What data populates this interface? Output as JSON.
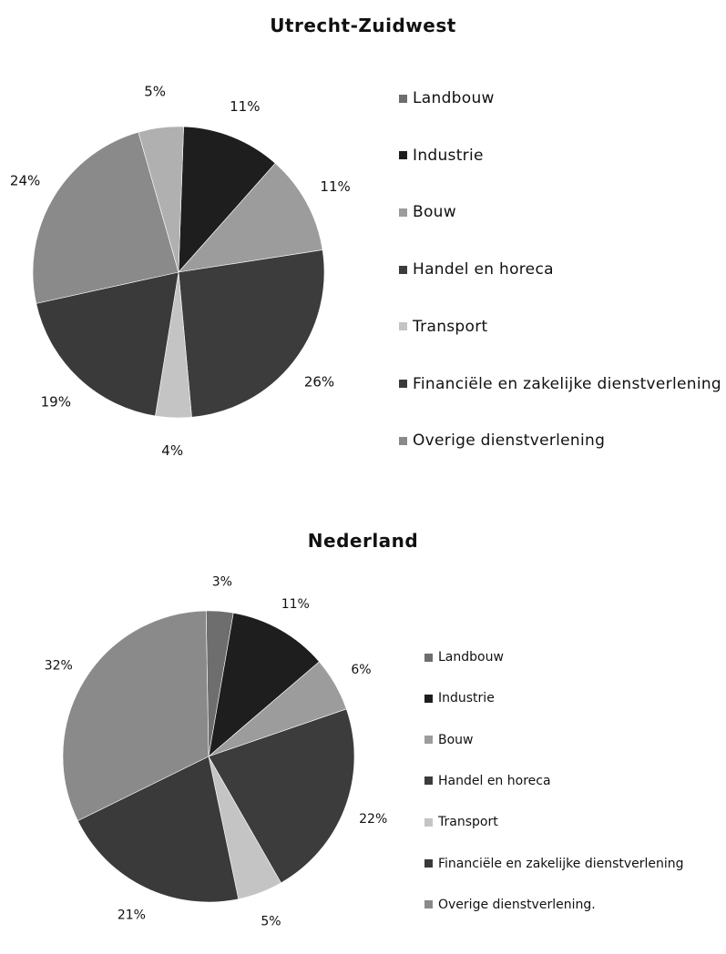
{
  "colors": {
    "Landbouw": "#6e6e6e",
    "Industrie": "#1e1e1e",
    "Bouw": "#9c9c9c",
    "Handel en horeca": "#3c3c3c",
    "Transport": "#c4c4c4",
    "Financiele en zakelijke dienstverlening": "#3a3a3a",
    "Overige dienstverlening": "#8a8a8a"
  },
  "chart_data": [
    {
      "type": "pie",
      "title": "Utrecht-Zuidwest",
      "slices": [
        {
          "label": "Landbouw",
          "value": 0,
          "display": ""
        },
        {
          "label": "Industrie",
          "value": 11,
          "display": "11%"
        },
        {
          "label": "Bouw",
          "value": 11,
          "display": "11%"
        },
        {
          "label": "Handel en horeca",
          "value": 26,
          "display": "26%"
        },
        {
          "label": "Transport",
          "value": 4,
          "display": "4%"
        },
        {
          "label": "Financiële en zakelijke dienstverlening",
          "value": 19,
          "display": "19%"
        },
        {
          "label": "Overige dienstverlening",
          "value": 24,
          "display": "24%"
        },
        {
          "label": "",
          "value": 5,
          "display": "5%"
        }
      ],
      "legend": [
        "Landbouw",
        "Industrie",
        "Bouw",
        "Handel en horeca",
        "Transport",
        "Financiële en zakelijke dienstverlening",
        "Overige dienstverlening"
      ],
      "legend_position": "right"
    },
    {
      "type": "pie",
      "title": "Nederland",
      "slices": [
        {
          "label": "Landbouw",
          "value": 3,
          "display": "3%"
        },
        {
          "label": "Industrie",
          "value": 11,
          "display": "11%"
        },
        {
          "label": "Bouw",
          "value": 6,
          "display": "6%"
        },
        {
          "label": "Handel en horeca",
          "value": 22,
          "display": "22%"
        },
        {
          "label": "Transport",
          "value": 5,
          "display": "5%"
        },
        {
          "label": "Financiële en zakelijke dienstverlening",
          "value": 21,
          "display": "21%"
        },
        {
          "label": "Overige dienstverlening",
          "value": 32,
          "display": "32%"
        }
      ],
      "legend": [
        "Landbouw",
        "Industrie",
        "Bouw",
        "Handel en horeca",
        "Transport",
        "Financiële en zakelijke dienstverlening",
        "Overige dienstverlening."
      ],
      "legend_position": "right"
    }
  ]
}
